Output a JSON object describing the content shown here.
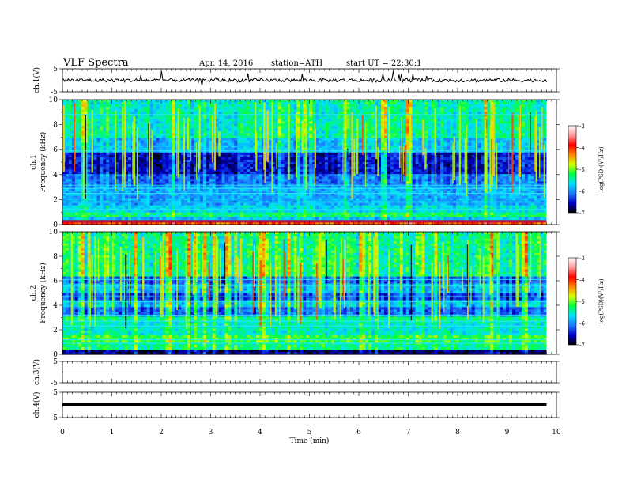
{
  "header": {
    "title": "VLF Spectra",
    "date": "Apr. 14, 2016",
    "station": "station=ATH",
    "start": "start UT = 22:30:1"
  },
  "colors": {
    "spectrogram_ramp": [
      "#000000",
      "#0000cc",
      "#1e78ff",
      "#00e0ff",
      "#00ff44",
      "#d6ff00",
      "#ff8800",
      "#ff0000",
      "#ff9a9a",
      "#ffffff"
    ],
    "trace": "#000000"
  },
  "chart_data": [
    {
      "type": "line",
      "panel": "ch1-waveform",
      "ylabel": "ch.1(V)",
      "ylim": [
        -5,
        5
      ],
      "yticks": [
        "5",
        "-5"
      ],
      "x": [
        0,
        9.8
      ],
      "y": [
        0,
        0
      ],
      "grid": false
    },
    {
      "type": "heatmap",
      "panel": "ch1-spectrogram",
      "ylabel": "ch.1\nFrequency (kHz)",
      "ylim": [
        0,
        10
      ],
      "yticks": [
        "0",
        "2",
        "4",
        "6",
        "8",
        "10"
      ],
      "xlim": [
        0,
        10
      ],
      "data_xmax": 9.8,
      "colorbar": {
        "label": "log(PSD)(V²/Hz)",
        "range": [
          -7,
          -3
        ],
        "ticks": [
          "-3",
          "-4",
          "-5",
          "-6",
          "-7"
        ]
      }
    },
    {
      "type": "heatmap",
      "panel": "ch2-spectrogram",
      "ylabel": "ch.2\nFrequency (kHz)",
      "ylim": [
        0,
        10
      ],
      "yticks": [
        "0",
        "2",
        "4",
        "6",
        "8",
        "10"
      ],
      "xlim": [
        0,
        10
      ],
      "data_xmax": 9.8,
      "colorbar": {
        "label": "log(PSD)(V²/Hz)",
        "range": [
          -7,
          -3
        ],
        "ticks": [
          "-3",
          "-4",
          "-5",
          "-6",
          "-7"
        ]
      }
    },
    {
      "type": "line",
      "panel": "ch3-waveform",
      "ylabel": "ch.3(V)",
      "ylim": [
        -5,
        5
      ],
      "yticks": [
        "5",
        "-5"
      ],
      "x": [
        0,
        9.8
      ],
      "y": [
        0,
        0
      ],
      "grid": false
    },
    {
      "type": "line",
      "panel": "ch4-waveform",
      "ylabel": "ch.4(V)",
      "ylim": [
        -5,
        5
      ],
      "yticks": [
        "5",
        "-5"
      ],
      "x": [
        0,
        9.8
      ],
      "y": [
        0,
        0
      ],
      "grid": false
    }
  ],
  "xaxis": {
    "label": "Time (min)",
    "ticks": [
      "0",
      "1",
      "2",
      "3",
      "4",
      "5",
      "6",
      "7",
      "8",
      "9",
      "10"
    ],
    "range": [
      0,
      10
    ]
  }
}
